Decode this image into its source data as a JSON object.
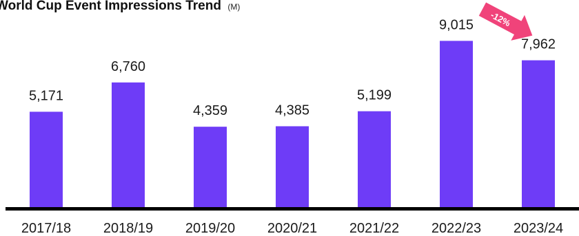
{
  "chart_data": {
    "type": "bar",
    "title": "World Cup Event Impressions Trend",
    "title_unit": "(M)",
    "categories": [
      "2017/18",
      "2018/19",
      "2019/20",
      "2020/21",
      "2021/22",
      "2022/23",
      "2023/24"
    ],
    "values": [
      5171,
      6760,
      4359,
      4385,
      5199,
      9015,
      7962
    ],
    "value_labels": [
      "5,171",
      "6,760",
      "4,359",
      "4,385",
      "5,199",
      "9,015",
      "7,962"
    ],
    "xlabel": "",
    "ylabel": "",
    "ylim": [
      0,
      10000
    ],
    "grid": false,
    "legend": "none",
    "bar_color": "#6e3cf7",
    "annotation": {
      "text": "-12%",
      "from_category": "2022/23",
      "to_category": "2023/24",
      "color": "#f0437a"
    }
  }
}
